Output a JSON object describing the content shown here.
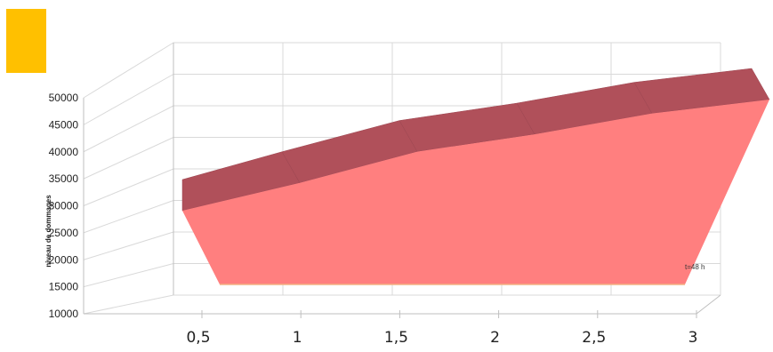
{
  "legend": {
    "swatch_color": "#FFC000"
  },
  "chart_data": {
    "type": "area",
    "ylabel": "niveau de dommages",
    "xlabel": "",
    "x": [
      0.5,
      1,
      1.5,
      2,
      2.5,
      3
    ],
    "x_tick_labels": [
      "0,5",
      "1",
      "1,5",
      "2",
      "2,5",
      "3"
    ],
    "y_tick_labels": [
      "50000",
      "45000",
      "40000",
      "35000",
      "30000",
      "25000",
      "20000",
      "15000",
      "10000"
    ],
    "ylim": [
      10000,
      50000
    ],
    "series": [
      {
        "name": "t=48 h",
        "values": [
          33500,
          37500,
          42000,
          44500,
          47500,
          49500
        ],
        "color": "#FF7F7F",
        "top_color": "#B0505A"
      }
    ],
    "grid": true,
    "projection": "3d"
  }
}
